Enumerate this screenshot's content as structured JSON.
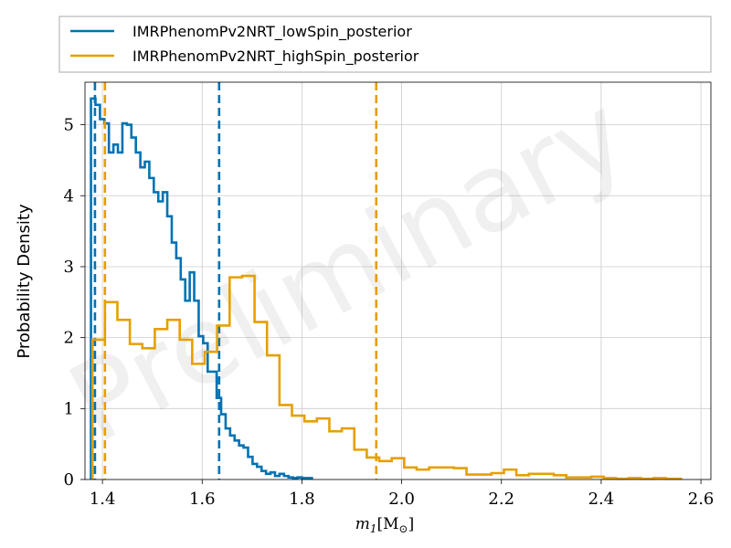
{
  "chart_data": {
    "type": "histogram",
    "title": "",
    "xlabel": "m_1[M_⊙]",
    "xlabel_main": "m",
    "xlabel_sub": "1",
    "xlabel_rest": "[M",
    "xlabel_rest_sub": "⊙",
    "xlabel_close": "]",
    "ylabel": "Probability Density",
    "xlim": [
      1.365,
      2.62
    ],
    "ylim": [
      0,
      5.6
    ],
    "xticks": [
      "1.4",
      "1.6",
      "1.8",
      "2.0",
      "2.2",
      "2.4",
      "2.6"
    ],
    "yticks": [
      "0",
      "1",
      "2",
      "3",
      "4",
      "5"
    ],
    "grid": true,
    "legend_position": "top (above plot)",
    "watermark": "Preliminary",
    "series": [
      {
        "name": "IMRPhenomPv2NRT_lowSpin_posterior",
        "color": "#0072b2",
        "bin_edges": [
          1.377,
          1.386,
          1.395,
          1.404,
          1.413,
          1.422,
          1.431,
          1.44,
          1.449,
          1.458,
          1.467,
          1.476,
          1.485,
          1.494,
          1.503,
          1.512,
          1.521,
          1.53,
          1.539,
          1.548,
          1.557,
          1.566,
          1.575,
          1.584,
          1.593,
          1.602,
          1.611,
          1.62,
          1.629,
          1.638,
          1.647,
          1.656,
          1.665,
          1.674,
          1.683,
          1.692,
          1.701,
          1.71,
          1.719,
          1.728,
          1.737,
          1.746,
          1.755,
          1.764,
          1.773,
          1.782,
          1.791,
          1.8,
          1.82
        ],
        "densities": [
          5.37,
          5.28,
          5.08,
          5.02,
          4.61,
          4.72,
          4.61,
          5.02,
          5.0,
          4.82,
          4.61,
          4.4,
          4.48,
          4.25,
          4.05,
          3.92,
          4.05,
          3.71,
          3.34,
          3.12,
          2.82,
          2.52,
          2.92,
          2.52,
          2.02,
          1.92,
          1.52,
          1.52,
          1.15,
          0.92,
          0.72,
          0.62,
          0.55,
          0.48,
          0.45,
          0.32,
          0.22,
          0.18,
          0.12,
          0.08,
          0.1,
          0.05,
          0.08,
          0.05,
          0.03,
          0.02,
          0.03,
          0.02
        ],
        "credible_interval": [
          1.385,
          1.634
        ]
      },
      {
        "name": "IMRPhenomPv2NRT_highSpin_posterior",
        "color": "#e69f00",
        "bin_edges": [
          1.38,
          1.405,
          1.43,
          1.455,
          1.48,
          1.505,
          1.53,
          1.555,
          1.58,
          1.605,
          1.63,
          1.655,
          1.68,
          1.705,
          1.73,
          1.755,
          1.78,
          1.805,
          1.83,
          1.855,
          1.88,
          1.905,
          1.93,
          1.955,
          1.98,
          2.005,
          2.03,
          2.055,
          2.08,
          2.105,
          2.13,
          2.155,
          2.18,
          2.205,
          2.23,
          2.255,
          2.28,
          2.305,
          2.33,
          2.355,
          2.38,
          2.405,
          2.43,
          2.455,
          2.48,
          2.505,
          2.53,
          2.56
        ],
        "densities": [
          1.97,
          2.5,
          2.25,
          1.91,
          1.85,
          2.12,
          2.25,
          1.97,
          1.63,
          1.8,
          2.17,
          2.85,
          2.87,
          2.22,
          1.75,
          1.05,
          0.9,
          0.82,
          0.86,
          0.68,
          0.72,
          0.42,
          0.31,
          0.26,
          0.3,
          0.17,
          0.14,
          0.17,
          0.17,
          0.16,
          0.07,
          0.07,
          0.09,
          0.14,
          0.06,
          0.08,
          0.08,
          0.06,
          0.03,
          0.03,
          0.04,
          0.02,
          0.01,
          0.02,
          0.01,
          0.02,
          0.01
        ],
        "credible_interval": [
          1.405,
          1.949
        ]
      }
    ]
  }
}
